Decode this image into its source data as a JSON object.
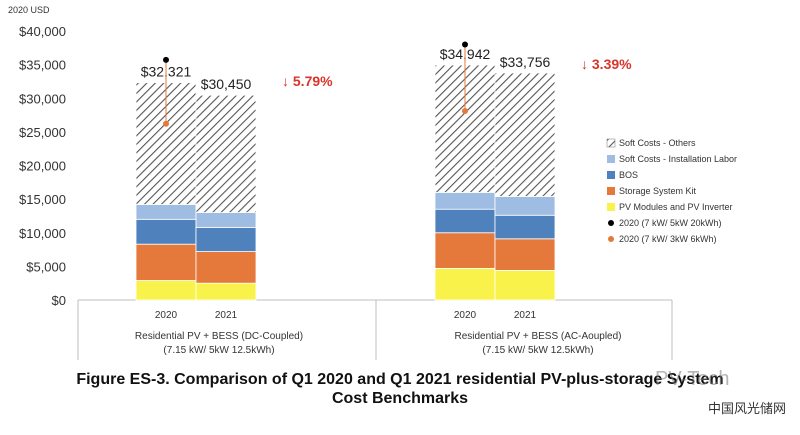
{
  "chart_data": {
    "type": "bar",
    "stacked": true,
    "unit_label": "2020 USD",
    "ylim": [
      0,
      40000
    ],
    "yticks": [
      "$0",
      "$5,000",
      "$10,000",
      "$15,000",
      "$20,000",
      "$25,000",
      "$30,000",
      "$35,000",
      "$40,000"
    ],
    "groups": [
      {
        "label": "Residential PV + BESS (DC-Coupled)",
        "sublabel": "(7.15 kW/ 5kW 12.5kWh)",
        "change_label": "↓ 5.79%",
        "bars": [
          {
            "year": "2020",
            "total_label": "$32,321",
            "values": [
              2900,
              5400,
              3700,
              2200,
              18121
            ],
            "marker_black": 35700,
            "marker_orange": 26200
          },
          {
            "year": "2021",
            "total_label": "$30,450",
            "values": [
              2500,
              4700,
              3600,
              2200,
              17450
            ]
          }
        ]
      },
      {
        "label": "Residential PV + BESS (AC-Aoupled)",
        "sublabel": "(7.15 kW/ 5kW 12.5kWh)",
        "change_label": "↓ 3.39%",
        "bars": [
          {
            "year": "2020",
            "total_label": "$34,942",
            "values": [
              4700,
              5300,
              3500,
              2500,
              18942
            ],
            "marker_black": 38000,
            "marker_orange": 28100
          },
          {
            "year": "2021",
            "total_label": "$33,756",
            "values": [
              4400,
              4700,
              3500,
              2800,
              18356
            ]
          }
        ]
      }
    ],
    "series": [
      {
        "name": "PV Modules and PV Inverter",
        "color": "#f9f24a"
      },
      {
        "name": "Storage System Kit",
        "color": "#e5793b"
      },
      {
        "name": "BOS",
        "color": "#4f81bd"
      },
      {
        "name": "Soft Costs - Installation Labor",
        "color": "#9fbce2"
      },
      {
        "name": "Soft Costs - Others",
        "color": "hatch"
      }
    ],
    "legend": {
      "position": "right",
      "items": [
        {
          "label": "Soft Costs - Others",
          "kind": "hatch"
        },
        {
          "label": "Soft Costs - Installation Labor",
          "kind": "box",
          "color": "#9fbce2"
        },
        {
          "label": "BOS",
          "kind": "box",
          "color": "#4f81bd"
        },
        {
          "label": "Storage System Kit",
          "kind": "box",
          "color": "#e5793b"
        },
        {
          "label": "PV Modules and PV Inverter",
          "kind": "box",
          "color": "#f9f24a"
        },
        {
          "label": "2020 (7 kW/ 5kW 20kWh)",
          "kind": "dot",
          "color": "#000000"
        },
        {
          "label": "2020 (7 kW/ 3kW 6kWh)",
          "kind": "dot",
          "color": "#e5793b"
        }
      ]
    },
    "change_color": "#d9342b"
  },
  "caption": {
    "line1": "Figure ES-3. Comparison of Q1 2020 and Q1 2021 residential PV-plus-storage System",
    "line2": "Cost Benchmarks"
  },
  "watermark": {
    "en": "PV-Tech",
    "cn": "中国风光储网"
  }
}
